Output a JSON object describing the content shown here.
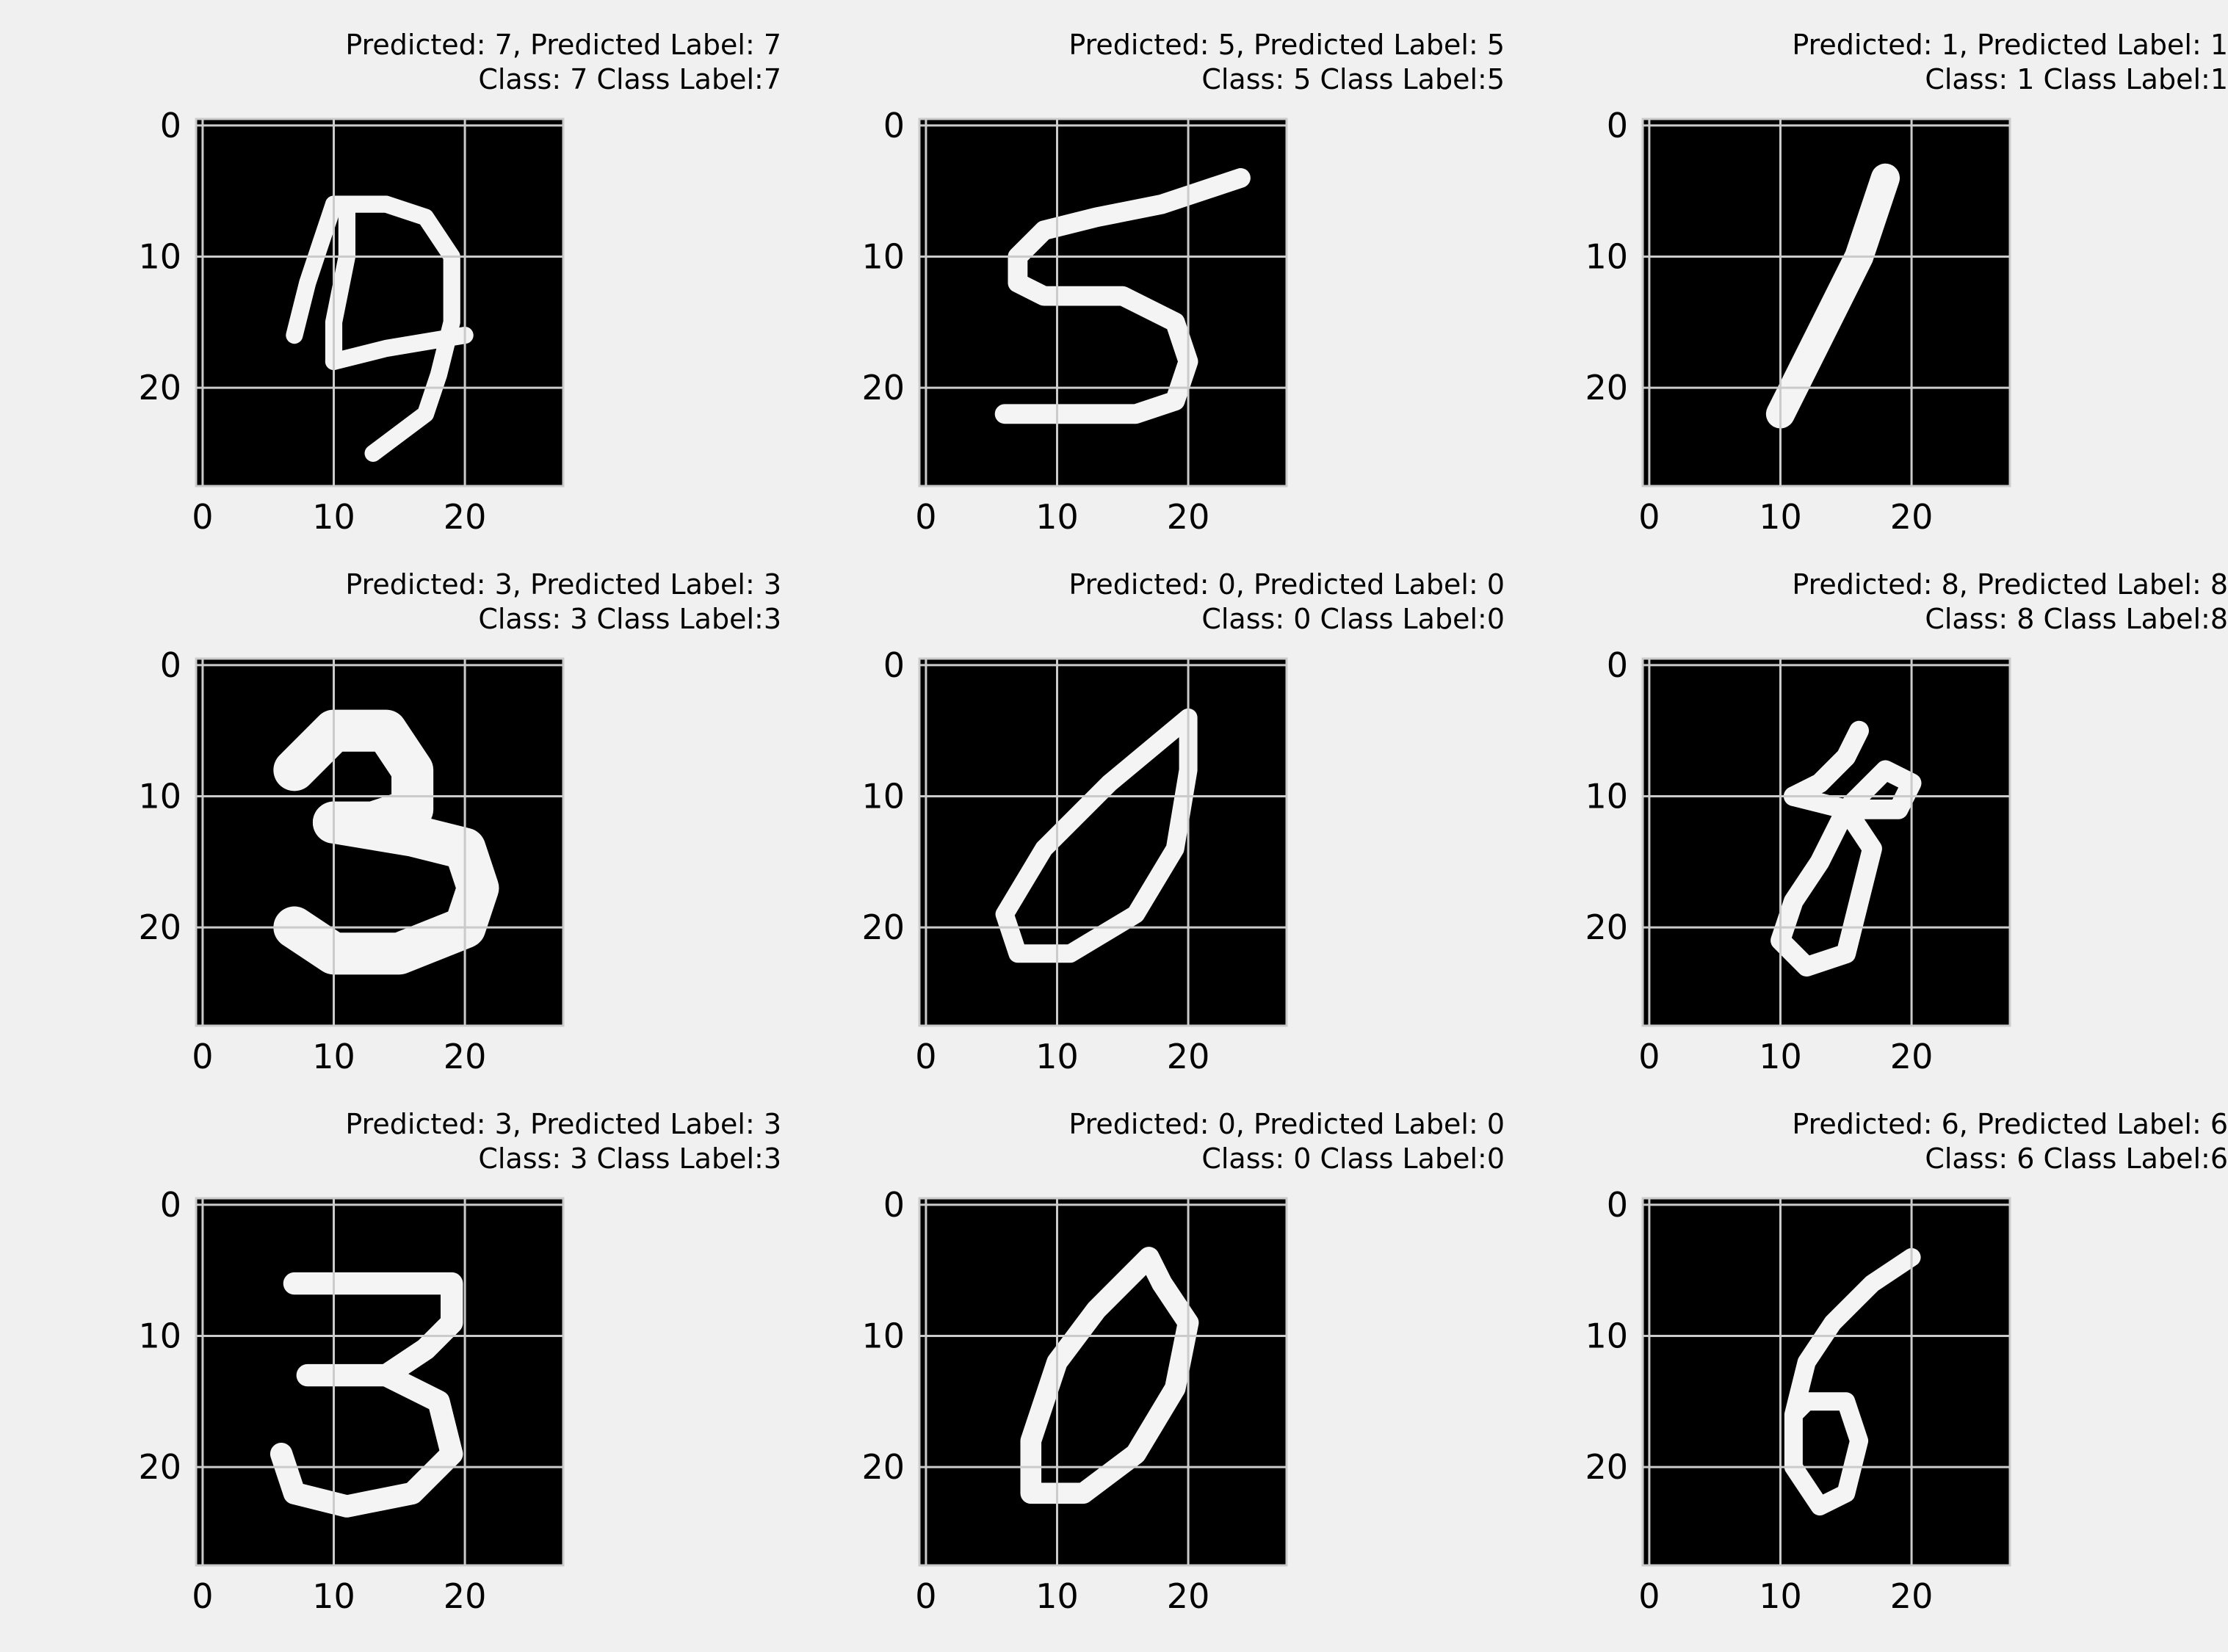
{
  "chart_data": [
    {
      "type": "heatmap",
      "title_line1": "Predicted: 7, Predicted Label: 7",
      "title_line2": "Class: 7 Class Label:7",
      "xticks": [
        "0",
        "10",
        "20"
      ],
      "yticks": [
        "0",
        "10",
        "20"
      ],
      "xlim": [
        -0.5,
        27.5
      ],
      "ylim": [
        27.5,
        -0.5
      ],
      "grid": true,
      "colormap": "gray",
      "digit": "7",
      "strokes": [
        [
          [
            10,
            6
          ],
          [
            14,
            6
          ],
          [
            17,
            7
          ],
          [
            19,
            10
          ],
          [
            19,
            15
          ],
          [
            18,
            19
          ],
          [
            17,
            22
          ],
          [
            13,
            25
          ]
        ],
        [
          [
            10,
            6
          ],
          [
            9,
            9
          ],
          [
            8,
            12
          ],
          [
            7,
            16
          ]
        ],
        [
          [
            11,
            6
          ],
          [
            11,
            10
          ],
          [
            10,
            15
          ],
          [
            10,
            18
          ]
        ],
        [
          [
            10,
            18
          ],
          [
            14,
            17
          ],
          [
            20,
            16
          ]
        ]
      ],
      "stroke_width": 1.3
    },
    {
      "type": "heatmap",
      "title_line1": "Predicted: 5, Predicted Label: 5",
      "title_line2": "Class: 5 Class Label:5",
      "xticks": [
        "0",
        "10",
        "20"
      ],
      "yticks": [
        "0",
        "10",
        "20"
      ],
      "xlim": [
        -0.5,
        27.5
      ],
      "ylim": [
        27.5,
        -0.5
      ],
      "grid": true,
      "colormap": "gray",
      "digit": "5",
      "strokes": [
        [
          [
            24,
            4
          ],
          [
            18,
            6
          ],
          [
            13,
            7
          ],
          [
            9,
            8
          ],
          [
            7,
            10
          ],
          [
            7,
            12
          ],
          [
            9,
            13
          ],
          [
            15,
            13
          ],
          [
            19,
            15
          ],
          [
            20,
            18
          ],
          [
            19,
            21
          ],
          [
            16,
            22
          ],
          [
            11,
            22
          ],
          [
            6,
            22
          ]
        ]
      ],
      "stroke_width": 1.5
    },
    {
      "type": "heatmap",
      "title_line1": "Predicted: 1, Predicted Label: 1",
      "title_line2": "Class: 1 Class Label:1",
      "xticks": [
        "0",
        "10",
        "20"
      ],
      "yticks": [
        "0",
        "10",
        "20"
      ],
      "xlim": [
        -0.5,
        27.5
      ],
      "ylim": [
        27.5,
        -0.5
      ],
      "grid": true,
      "colormap": "gray",
      "digit": "1",
      "strokes": [
        [
          [
            18,
            4
          ],
          [
            16,
            10
          ],
          [
            13,
            16
          ],
          [
            10,
            22
          ]
        ]
      ],
      "stroke_width": 2.2
    },
    {
      "type": "heatmap",
      "title_line1": "Predicted: 3, Predicted Label: 3",
      "title_line2": "Class: 3 Class Label:3",
      "xticks": [
        "0",
        "10",
        "20"
      ],
      "yticks": [
        "0",
        "10",
        "20"
      ],
      "xlim": [
        -0.5,
        27.5
      ],
      "ylim": [
        27.5,
        -0.5
      ],
      "grid": true,
      "colormap": "gray",
      "digit": "3",
      "strokes": [
        [
          [
            7,
            8
          ],
          [
            10,
            5
          ],
          [
            14,
            5
          ],
          [
            16,
            8
          ],
          [
            16,
            11
          ],
          [
            13,
            12
          ],
          [
            10,
            12
          ]
        ],
        [
          [
            10,
            12
          ],
          [
            16,
            13
          ],
          [
            20,
            14
          ],
          [
            21,
            17
          ],
          [
            20,
            20
          ],
          [
            15,
            22
          ],
          [
            10,
            22
          ],
          [
            7,
            20
          ]
        ]
      ],
      "stroke_width": 3.2
    },
    {
      "type": "heatmap",
      "title_line1": "Predicted: 0, Predicted Label: 0",
      "title_line2": "Class: 0 Class Label:0",
      "xticks": [
        "0",
        "10",
        "20"
      ],
      "yticks": [
        "0",
        "10",
        "20"
      ],
      "xlim": [
        -0.5,
        27.5
      ],
      "ylim": [
        27.5,
        -0.5
      ],
      "grid": true,
      "colormap": "gray",
      "digit": "0",
      "strokes": [
        [
          [
            20,
            4
          ],
          [
            14,
            9
          ],
          [
            9,
            14
          ],
          [
            6,
            19
          ],
          [
            7,
            22
          ],
          [
            11,
            22
          ],
          [
            16,
            19
          ],
          [
            19,
            14
          ],
          [
            20,
            8
          ],
          [
            20,
            4
          ]
        ]
      ],
      "stroke_width": 1.4
    },
    {
      "type": "heatmap",
      "title_line1": "Predicted: 8, Predicted Label: 8",
      "title_line2": "Class: 8 Class Label:8",
      "xticks": [
        "0",
        "10",
        "20"
      ],
      "yticks": [
        "0",
        "10",
        "20"
      ],
      "xlim": [
        -0.5,
        27.5
      ],
      "ylim": [
        27.5,
        -0.5
      ],
      "grid": true,
      "colormap": "gray",
      "digit": "8",
      "strokes": [
        [
          [
            16,
            5
          ],
          [
            15,
            7
          ],
          [
            13,
            9
          ],
          [
            11,
            10
          ]
        ],
        [
          [
            11,
            10
          ],
          [
            15,
            11
          ],
          [
            17,
            14
          ],
          [
            16,
            18
          ],
          [
            15,
            22
          ],
          [
            12,
            23
          ],
          [
            10,
            21
          ],
          [
            11,
            18
          ],
          [
            13,
            15
          ],
          [
            15,
            11
          ],
          [
            18,
            8
          ],
          [
            20,
            9
          ],
          [
            19,
            11
          ],
          [
            16,
            11
          ]
        ]
      ],
      "stroke_width": 1.5
    },
    {
      "type": "heatmap",
      "title_line1": "Predicted: 3, Predicted Label: 3",
      "title_line2": "Class: 3 Class Label:3",
      "xticks": [
        "0",
        "10",
        "20"
      ],
      "yticks": [
        "0",
        "10",
        "20"
      ],
      "xlim": [
        -0.5,
        27.5
      ],
      "ylim": [
        27.5,
        -0.5
      ],
      "grid": true,
      "colormap": "gray",
      "digit": "3",
      "strokes": [
        [
          [
            7,
            6
          ],
          [
            19,
            6
          ],
          [
            19,
            9
          ],
          [
            17,
            11
          ],
          [
            14,
            13
          ],
          [
            8,
            13
          ]
        ],
        [
          [
            14,
            13
          ],
          [
            18,
            15
          ],
          [
            19,
            19
          ],
          [
            16,
            22
          ],
          [
            11,
            23
          ],
          [
            7,
            22
          ],
          [
            6,
            19
          ]
        ]
      ],
      "stroke_width": 1.7
    },
    {
      "type": "heatmap",
      "title_line1": "Predicted: 0, Predicted Label: 0",
      "title_line2": "Class: 0 Class Label:0",
      "xticks": [
        "0",
        "10",
        "20"
      ],
      "yticks": [
        "0",
        "10",
        "20"
      ],
      "xlim": [
        -0.5,
        27.5
      ],
      "ylim": [
        27.5,
        -0.5
      ],
      "grid": true,
      "colormap": "gray",
      "digit": "0",
      "strokes": [
        [
          [
            17,
            4
          ],
          [
            13,
            8
          ],
          [
            10,
            12
          ],
          [
            8,
            18
          ],
          [
            8,
            22
          ],
          [
            12,
            22
          ],
          [
            16,
            19
          ],
          [
            19,
            14
          ],
          [
            20,
            9
          ],
          [
            18,
            6
          ],
          [
            17,
            4
          ]
        ]
      ],
      "stroke_width": 1.6
    },
    {
      "type": "heatmap",
      "title_line1": "Predicted: 6, Predicted Label: 6",
      "title_line2": "Class: 6 Class Label:6",
      "xticks": [
        "0",
        "10",
        "20"
      ],
      "yticks": [
        "0",
        "10",
        "20"
      ],
      "xlim": [
        -0.5,
        27.5
      ],
      "ylim": [
        27.5,
        -0.5
      ],
      "grid": true,
      "colormap": "gray",
      "digit": "6",
      "strokes": [
        [
          [
            20,
            4
          ],
          [
            17,
            6
          ],
          [
            14,
            9
          ],
          [
            12,
            12
          ],
          [
            11,
            16
          ],
          [
            11,
            20
          ],
          [
            13,
            23
          ],
          [
            15,
            22
          ],
          [
            16,
            18
          ],
          [
            15,
            15
          ],
          [
            12,
            15
          ],
          [
            11,
            16
          ]
        ]
      ],
      "stroke_width": 1.4
    }
  ]
}
